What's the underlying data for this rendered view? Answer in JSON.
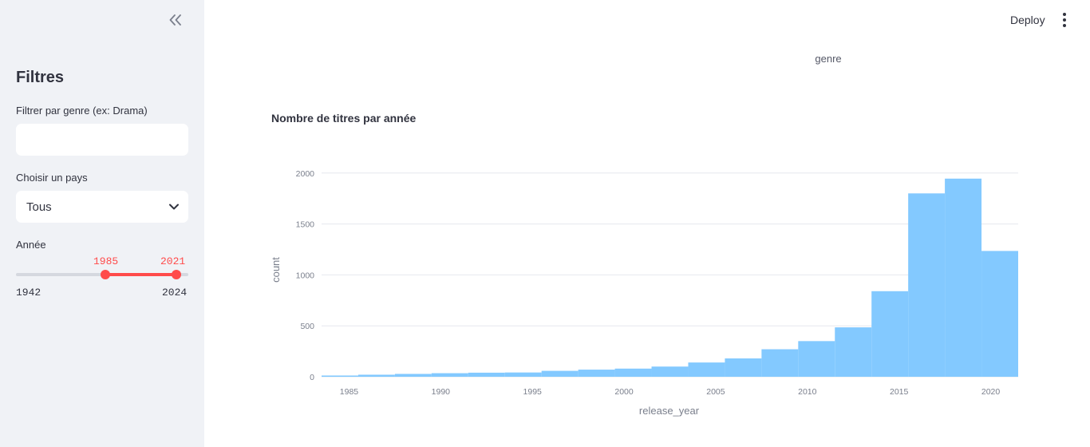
{
  "sidebar": {
    "title": "Filtres",
    "genre_filter": {
      "label": "Filtrer par genre (ex: Drama)",
      "value": "",
      "placeholder": ""
    },
    "country_select": {
      "label": "Choisir un pays",
      "value": "Tous"
    },
    "year_slider": {
      "label": "Année",
      "low_text": "1985",
      "high_text": "2021",
      "min_text": "1942",
      "max_text": "2024",
      "low": 1985,
      "high": 2021,
      "min": 1942,
      "max": 2024
    }
  },
  "header": {
    "deploy_label": "Deploy"
  },
  "main": {
    "genre_text": "genre",
    "chart_heading": "Nombre de titres par année"
  },
  "colors": {
    "accent": "#ff4b4b",
    "bar": "#83c9ff",
    "sidebar_bg": "#f0f2f6"
  },
  "icons": {
    "collapse": "double-chevron-left-icon",
    "menu": "vertical-dots-icon",
    "dropdown": "chevron-down-icon"
  },
  "chart_data": {
    "type": "bar",
    "title": "",
    "xlabel": "release_year",
    "ylabel": "count",
    "xlim": [
      1983.5,
      2021.5
    ],
    "ylim": [
      0,
      2100
    ],
    "x_ticks": [
      "1985",
      "1990",
      "1995",
      "2000",
      "2005",
      "2010",
      "2015",
      "2020"
    ],
    "x_tick_values": [
      1985,
      1990,
      1995,
      2000,
      2005,
      2010,
      2015,
      2020
    ],
    "y_ticks": [
      "0",
      "500",
      "1000",
      "1500",
      "2000"
    ],
    "y_tick_values": [
      0,
      500,
      1000,
      1500,
      2000
    ],
    "grid": true,
    "bins": [
      {
        "start": 1983.5,
        "end": 1985.5,
        "value": 12
      },
      {
        "start": 1985.5,
        "end": 1987.5,
        "value": 20
      },
      {
        "start": 1987.5,
        "end": 1989.5,
        "value": 28
      },
      {
        "start": 1989.5,
        "end": 1991.5,
        "value": 35
      },
      {
        "start": 1991.5,
        "end": 1993.5,
        "value": 40
      },
      {
        "start": 1993.5,
        "end": 1995.5,
        "value": 42
      },
      {
        "start": 1995.5,
        "end": 1997.5,
        "value": 58
      },
      {
        "start": 1997.5,
        "end": 1999.5,
        "value": 70
      },
      {
        "start": 1999.5,
        "end": 2001.5,
        "value": 80
      },
      {
        "start": 2001.5,
        "end": 2003.5,
        "value": 100
      },
      {
        "start": 2003.5,
        "end": 2005.5,
        "value": 140
      },
      {
        "start": 2005.5,
        "end": 2007.5,
        "value": 180
      },
      {
        "start": 2007.5,
        "end": 2009.5,
        "value": 270
      },
      {
        "start": 2009.5,
        "end": 2011.5,
        "value": 350
      },
      {
        "start": 2011.5,
        "end": 2013.5,
        "value": 485
      },
      {
        "start": 2013.5,
        "end": 2015.5,
        "value": 840
      },
      {
        "start": 2015.5,
        "end": 2017.5,
        "value": 1800
      },
      {
        "start": 2017.5,
        "end": 2019.5,
        "value": 1945
      },
      {
        "start": 2019.5,
        "end": 2021.5,
        "value": 1235
      }
    ]
  }
}
